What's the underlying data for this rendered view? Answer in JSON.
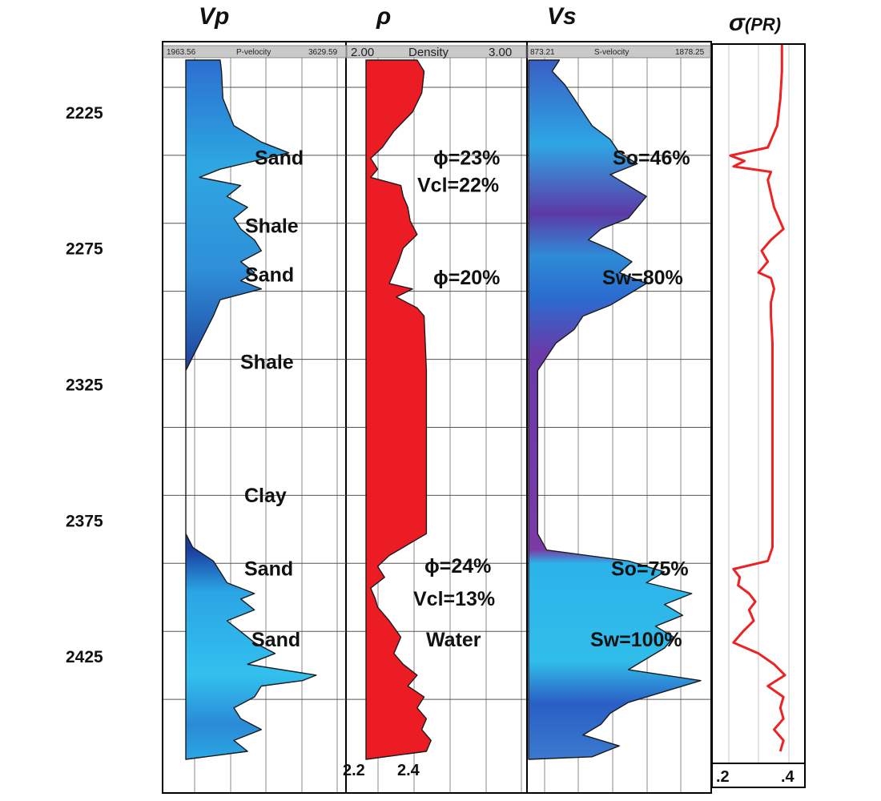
{
  "chart_data": {
    "type": "line",
    "tracks": [
      {
        "key": "vp",
        "title": "Vp",
        "header_left": "1963.56",
        "header_name": "P-velocity",
        "header_right": "3629.59"
      },
      {
        "key": "rho",
        "title": "ρ",
        "header_left": "2.00",
        "header_name": "Density",
        "header_right": "3.00",
        "scale_left": "2.2",
        "scale_right": "2.4"
      },
      {
        "key": "vs",
        "title": "Vs",
        "header_left": "873.21",
        "header_name": "S-velocity",
        "header_right": "1878.25"
      },
      {
        "key": "pr",
        "title": "σ",
        "title_suffix": "(PR)",
        "scale_left": ".2",
        "scale_right": ".4"
      }
    ],
    "depth_axis": {
      "ticks": [
        "2225",
        "2275",
        "2325",
        "2375",
        "2425"
      ],
      "range": [
        2200,
        2465
      ]
    },
    "annotations": {
      "vp": [
        {
          "text": "Sand",
          "depth": 2242
        },
        {
          "text": "Shale",
          "depth": 2267
        },
        {
          "text": "Sand",
          "depth": 2285
        },
        {
          "text": "Shale",
          "depth": 2317
        },
        {
          "text": "Clay",
          "depth": 2366
        },
        {
          "text": "Sand",
          "depth": 2393
        },
        {
          "text": "Sand",
          "depth": 2419
        }
      ],
      "rho": [
        {
          "text": "ϕ=23%",
          "depth": 2242
        },
        {
          "text": "Vcl=22%",
          "depth": 2252
        },
        {
          "text": "ϕ=20%",
          "depth": 2286
        },
        {
          "text": "ϕ=24%",
          "depth": 2392
        },
        {
          "text": "Vcl=13%",
          "depth": 2404
        },
        {
          "text": "Water",
          "depth": 2419
        }
      ],
      "vs": [
        {
          "text": "So=46%",
          "depth": 2242
        },
        {
          "text": "Sw=80%",
          "depth": 2286
        },
        {
          "text": "So=75%",
          "depth": 2393
        },
        {
          "text": "Sw=100%",
          "depth": 2419
        }
      ]
    },
    "series": [
      {
        "key": "vp",
        "depth": [
          2200,
          2210,
          2220,
          2230,
          2236,
          2240,
          2243,
          2246,
          2249,
          2252,
          2256,
          2260,
          2264,
          2268,
          2272,
          2276,
          2280,
          2284,
          2287,
          2290,
          2294,
          2300,
          2310,
          2320,
          2330,
          2340,
          2350,
          2360,
          2370,
          2380,
          2385,
          2390,
          2394,
          2398,
          2402,
          2404,
          2408,
          2412,
          2416,
          2420,
          2424,
          2428,
          2432,
          2434,
          2436,
          2440,
          2444,
          2448,
          2452,
          2456,
          2460
        ],
        "values": [
          2400,
          2410,
          2420,
          2500,
          2700,
          2900,
          2650,
          2400,
          2250,
          2550,
          2450,
          2600,
          2500,
          2550,
          2650,
          2700,
          2550,
          2650,
          2550,
          2700,
          2400,
          2350,
          2250,
          2150,
          2150,
          2150,
          2150,
          2150,
          2150,
          2150,
          2200,
          2350,
          2400,
          2450,
          2650,
          2550,
          2650,
          2450,
          2550,
          2650,
          2800,
          2600,
          3100,
          3000,
          2700,
          2650,
          2500,
          2550,
          2700,
          2500,
          2600
        ]
      },
      {
        "key": "rho",
        "depth": [
          2200,
          2210,
          2218,
          2225,
          2232,
          2238,
          2242,
          2246,
          2249,
          2252,
          2256,
          2260,
          2265,
          2270,
          2275,
          2280,
          2284,
          2288,
          2290,
          2293,
          2297,
          2300,
          2320,
          2340,
          2360,
          2380,
          2388,
          2392,
          2396,
          2400,
          2404,
          2407,
          2412,
          2418,
          2424,
          2428,
          2432,
          2436,
          2440,
          2444,
          2448,
          2452,
          2456,
          2460
        ],
        "values": [
          2.42,
          2.45,
          2.44,
          2.4,
          2.32,
          2.27,
          2.22,
          2.25,
          2.22,
          2.35,
          2.36,
          2.38,
          2.39,
          2.42,
          2.36,
          2.34,
          2.32,
          2.3,
          2.4,
          2.33,
          2.42,
          2.45,
          2.46,
          2.46,
          2.46,
          2.46,
          2.3,
          2.25,
          2.28,
          2.22,
          2.24,
          2.25,
          2.3,
          2.35,
          2.32,
          2.36,
          2.42,
          2.38,
          2.45,
          2.42,
          2.46,
          2.44,
          2.48,
          2.46
        ]
      },
      {
        "key": "vs",
        "depth": [
          2200,
          2205,
          2210,
          2215,
          2220,
          2225,
          2230,
          2235,
          2240,
          2244,
          2248,
          2252,
          2256,
          2260,
          2264,
          2268,
          2272,
          2276,
          2280,
          2284,
          2288,
          2292,
          2296,
          2300,
          2305,
          2310,
          2320,
          2330,
          2340,
          2350,
          2360,
          2370,
          2380,
          2386,
          2390,
          2394,
          2398,
          2402,
          2406,
          2410,
          2414,
          2418,
          2422,
          2426,
          2430,
          2434,
          2438,
          2442,
          2446,
          2450,
          2454,
          2458,
          2462
        ],
        "values": [
          1100,
          1120,
          1080,
          1150,
          1200,
          1250,
          1300,
          1400,
          1450,
          1550,
          1400,
          1500,
          1600,
          1550,
          1500,
          1350,
          1280,
          1420,
          1520,
          1450,
          1600,
          1500,
          1400,
          1250,
          1200,
          1100,
          1000,
          1000,
          1000,
          1000,
          1000,
          1000,
          1000,
          1050,
          1500,
          1700,
          1600,
          1850,
          1700,
          1800,
          1650,
          1750,
          1700,
          1600,
          1500,
          1900,
          1700,
          1500,
          1400,
          1350,
          1250,
          1450,
          1300
        ]
      },
      {
        "key": "pr",
        "depth": [
          2200,
          2210,
          2220,
          2230,
          2238,
          2241,
          2243,
          2245,
          2247,
          2250,
          2255,
          2260,
          2268,
          2272,
          2276,
          2280,
          2284,
          2286,
          2290,
          2295,
          2300,
          2310,
          2330,
          2350,
          2370,
          2385,
          2390,
          2393,
          2396,
          2399,
          2402,
          2405,
          2408,
          2412,
          2416,
          2420,
          2424,
          2428,
          2432,
          2436,
          2440,
          2444,
          2448,
          2452,
          2456,
          2460
        ],
        "values": [
          0.375,
          0.375,
          0.37,
          0.36,
          0.33,
          0.21,
          0.255,
          0.22,
          0.34,
          0.33,
          0.34,
          0.35,
          0.38,
          0.34,
          0.31,
          0.33,
          0.3,
          0.34,
          0.35,
          0.34,
          0.34,
          0.345,
          0.345,
          0.345,
          0.345,
          0.345,
          0.33,
          0.22,
          0.24,
          0.235,
          0.27,
          0.29,
          0.27,
          0.285,
          0.25,
          0.22,
          0.3,
          0.35,
          0.385,
          0.33,
          0.38,
          0.37,
          0.38,
          0.35,
          0.38,
          0.37
        ]
      }
    ],
    "colors": {
      "vp_fill_top": "#1a3f9e",
      "vp_fill_mid": "#2a8ad6",
      "vp_fill_bright": "#29b6e8",
      "rho_fill": "#ec1c24",
      "vs_fill_purple": "#7a3aa6",
      "vs_fill_blue": "#3a7ad0",
      "vs_fill_cyan": "#2cb3ea",
      "pr_line": "#ee2222",
      "grid": "#b0b0b0",
      "header_bg": "#c9c9c9"
    }
  }
}
